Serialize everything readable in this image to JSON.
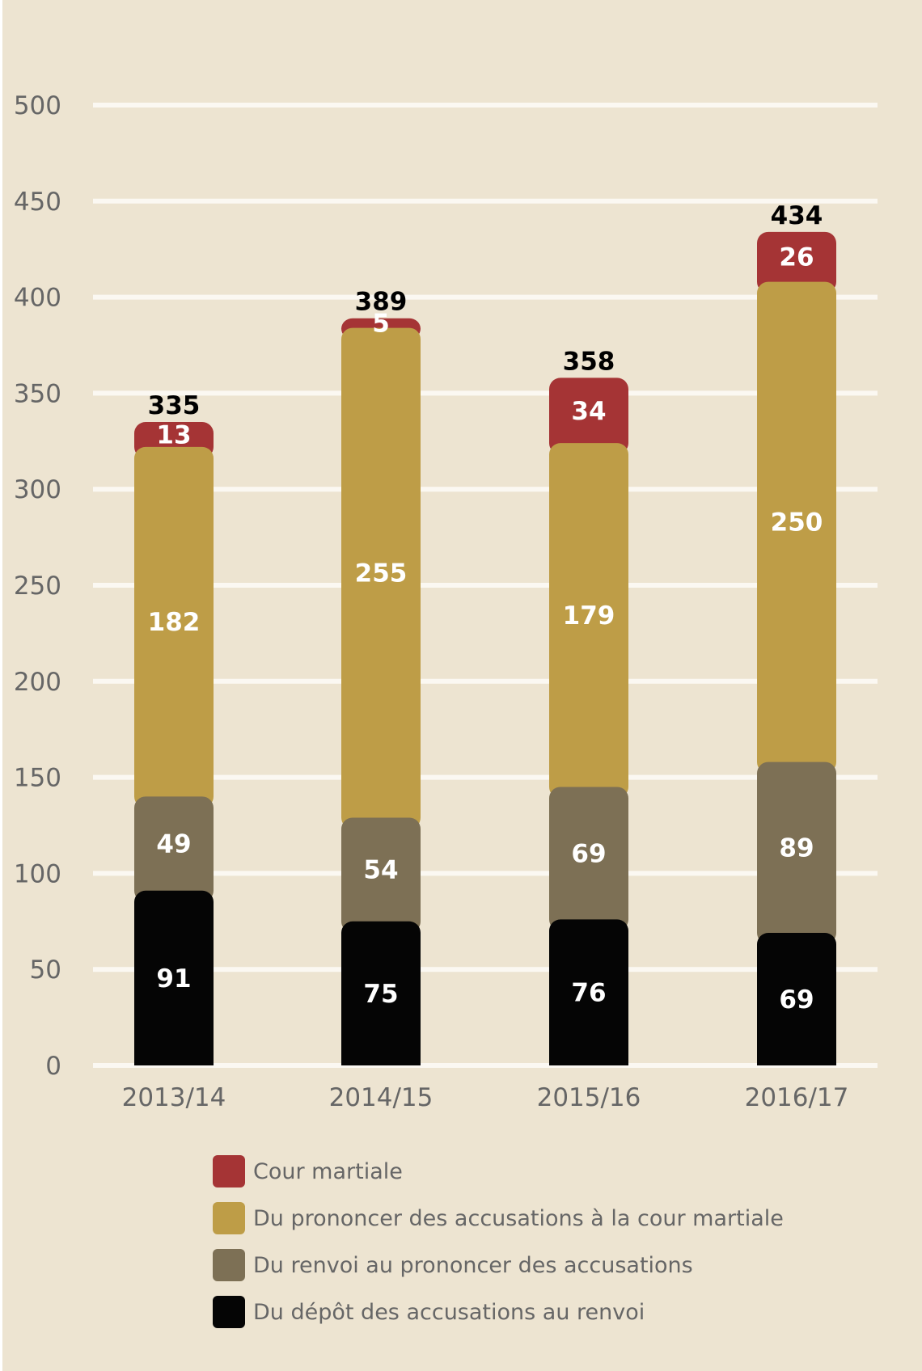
{
  "chart_data": {
    "type": "bar",
    "stacked": true,
    "categories": [
      "2013/14",
      "2014/15",
      "2015/16",
      "2016/17"
    ],
    "series": [
      {
        "name": "Du dépôt des accusations au renvoi",
        "values": [
          91,
          75,
          76,
          69
        ],
        "color": "#050505"
      },
      {
        "name": "Du renvoi au prononcer des accusations",
        "values": [
          49,
          54,
          69,
          89
        ],
        "color": "#7d7055"
      },
      {
        "name": "Du prononcer des accusations à la cour martiale",
        "values": [
          182,
          255,
          179,
          250
        ],
        "color": "#be9d47"
      },
      {
        "name": "Cour martiale",
        "values": [
          13,
          5,
          34,
          26
        ],
        "color": "#a53435"
      }
    ],
    "totals": [
      335,
      389,
      358,
      434
    ],
    "yticks": [
      0,
      50,
      100,
      150,
      200,
      250,
      300,
      350,
      400,
      450,
      500
    ],
    "ylim": [
      0,
      500
    ],
    "grid": true,
    "legend_position": "bottom",
    "title": "",
    "xlabel": "",
    "ylabel": ""
  },
  "legend_order": [
    3,
    2,
    1,
    0
  ]
}
